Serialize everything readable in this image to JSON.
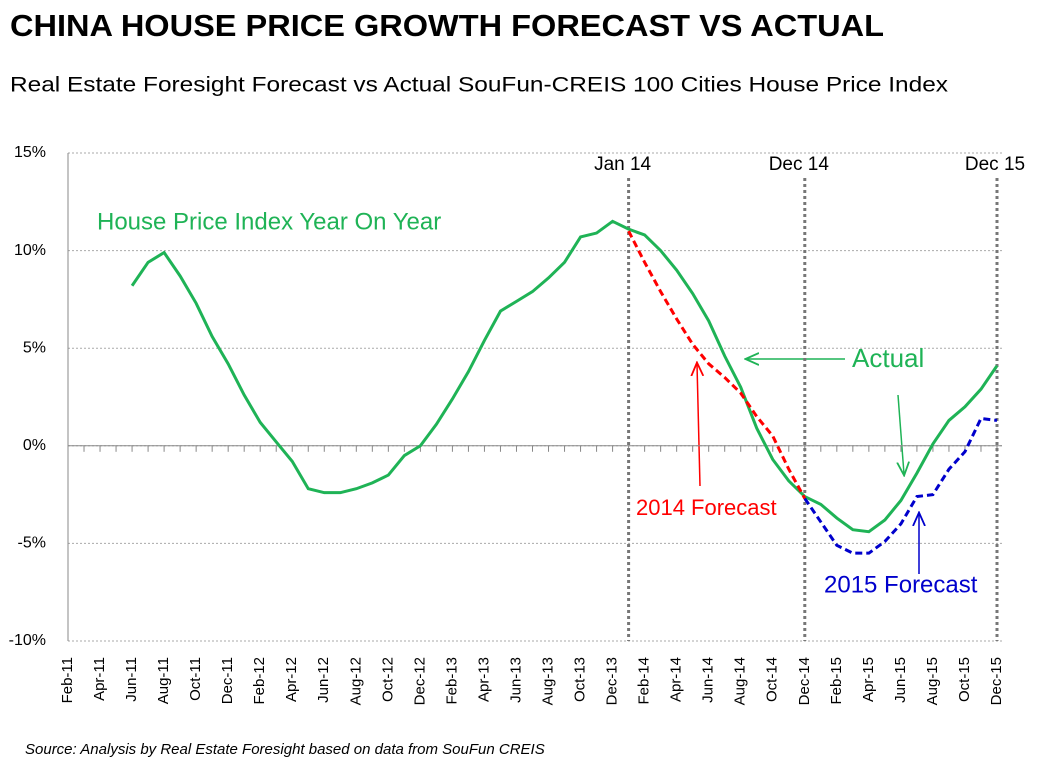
{
  "chart_data": {
    "type": "line",
    "title": "CHINA HOUSE PRICE GROWTH FORECAST VS ACTUAL",
    "subtitle": "Real Estate Foresight Forecast vs Actual SouFun-CREIS 100 Cities House Price Index",
    "source": "Source: Analysis by Real Estate Foresight based on data from SouFun CREIS",
    "annotation": "House Price Index Year On Year",
    "markers": [
      "Jan 14",
      "Dec 14",
      "Dec 15"
    ],
    "categories": [
      "Feb-11",
      null,
      "Apr-11",
      null,
      "Jun-11",
      null,
      "Aug-11",
      null,
      "Oct-11",
      null,
      "Dec-11",
      null,
      "Feb-12",
      null,
      "Apr-12",
      null,
      "Jun-12",
      null,
      "Aug-12",
      null,
      "Oct-12",
      null,
      "Dec-12",
      null,
      "Feb-13",
      null,
      "Apr-13",
      null,
      "Jun-13",
      null,
      "Aug-13",
      null,
      "Oct-13",
      null,
      "Dec-13",
      null,
      "Feb-14",
      null,
      "Apr-14",
      null,
      "Jun-14",
      null,
      "Aug-14",
      null,
      "Oct-14",
      null,
      "Dec-14",
      null,
      "Feb-15",
      null,
      "Apr-15",
      null,
      "Jun-15",
      null,
      "Aug-15",
      null,
      "Oct-15",
      null,
      "Dec-15"
    ],
    "series": [
      {
        "name": "Actual",
        "color": "#1fb356",
        "dashed": false,
        "values": [
          null,
          null,
          null,
          null,
          8.2,
          9.4,
          9.9,
          8.7,
          7.3,
          5.6,
          4.2,
          2.6,
          1.2,
          0.2,
          -0.8,
          -2.2,
          -2.4,
          -2.4,
          -2.2,
          -1.9,
          -1.5,
          -0.5,
          0.0,
          1.1,
          2.4,
          3.8,
          5.4,
          6.9,
          7.4,
          7.9,
          8.6,
          9.4,
          10.7,
          10.9,
          11.5,
          11.1,
          10.8,
          10.0,
          9.0,
          7.8,
          6.4,
          4.6,
          3.0,
          0.9,
          -0.7,
          -1.8,
          -2.6,
          -3.0,
          -3.7,
          -4.3,
          -4.4,
          -3.8,
          -2.8,
          -1.4,
          0.1,
          1.3,
          2.0,
          2.9,
          4.1
        ]
      },
      {
        "name": "2014 Forecast",
        "color": "#ff0000",
        "dashed": true,
        "values": [
          null,
          null,
          null,
          null,
          null,
          null,
          null,
          null,
          null,
          null,
          null,
          null,
          null,
          null,
          null,
          null,
          null,
          null,
          null,
          null,
          null,
          null,
          null,
          null,
          null,
          null,
          null,
          null,
          null,
          null,
          null,
          null,
          null,
          null,
          null,
          11.0,
          9.4,
          7.9,
          6.5,
          5.2,
          4.2,
          3.5,
          2.7,
          1.5,
          0.5,
          -1.2,
          -2.7,
          null,
          null,
          null,
          null,
          null,
          null,
          null,
          null,
          null,
          null,
          null,
          null
        ]
      },
      {
        "name": "2015 Forecast",
        "color": "#0000cc",
        "dashed": true,
        "values": [
          null,
          null,
          null,
          null,
          null,
          null,
          null,
          null,
          null,
          null,
          null,
          null,
          null,
          null,
          null,
          null,
          null,
          null,
          null,
          null,
          null,
          null,
          null,
          null,
          null,
          null,
          null,
          null,
          null,
          null,
          null,
          null,
          null,
          null,
          null,
          null,
          null,
          null,
          null,
          null,
          null,
          null,
          null,
          null,
          null,
          null,
          -2.7,
          -3.9,
          -5.1,
          -5.5,
          -5.5,
          -4.9,
          -4.0,
          -2.6,
          -2.5,
          -1.2,
          -0.3,
          1.4,
          1.3
        ]
      }
    ],
    "ylim": [
      -10,
      15
    ],
    "yticks": [
      {
        "value": -10,
        "label": "-10%"
      },
      {
        "value": -5,
        "label": "-5%"
      },
      {
        "value": 0,
        "label": "0%"
      },
      {
        "value": 5,
        "label": "5%"
      },
      {
        "value": 10,
        "label": "10%"
      },
      {
        "value": 15,
        "label": "15%"
      }
    ],
    "grid": true
  }
}
